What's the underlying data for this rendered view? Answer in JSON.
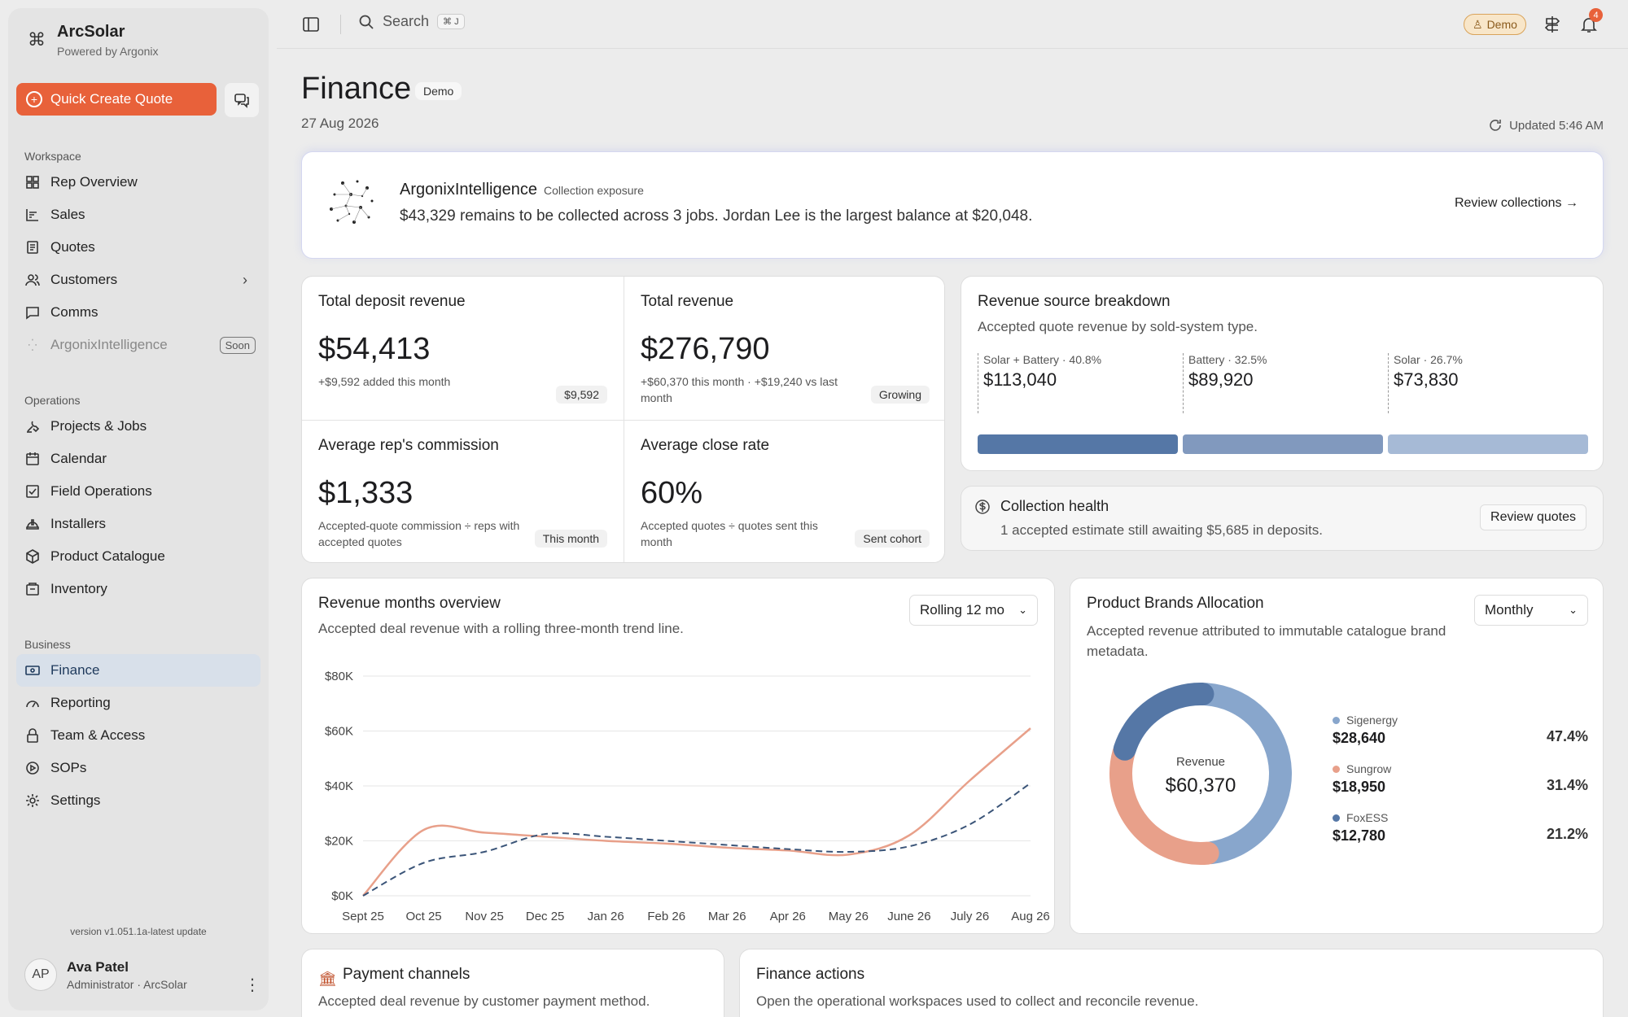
{
  "brand": {
    "name": "ArcSolar",
    "sub": "Powered by Argonix"
  },
  "sidebar": {
    "quick_create": "Quick Create Quote",
    "workspace_label": "Workspace",
    "operations_label": "Operations",
    "business_label": "Business",
    "workspace": [
      {
        "label": "Rep Overview",
        "icon": "grid-icon"
      },
      {
        "label": "Sales",
        "icon": "chart-icon"
      },
      {
        "label": "Quotes",
        "icon": "document-icon"
      },
      {
        "label": "Customers",
        "icon": "users-icon"
      },
      {
        "label": "Comms",
        "icon": "message-icon"
      },
      {
        "label": "ArgonixIntelligence",
        "icon": "sparkle-icon",
        "tag": "Soon"
      }
    ],
    "operations": [
      {
        "label": "Projects & Jobs",
        "icon": "tools-icon"
      },
      {
        "label": "Calendar",
        "icon": "calendar-icon"
      },
      {
        "label": "Field Operations",
        "icon": "checklist-icon"
      },
      {
        "label": "Installers",
        "icon": "hardhat-icon"
      },
      {
        "label": "Product Catalogue",
        "icon": "box-icon"
      },
      {
        "label": "Inventory",
        "icon": "inventory-icon"
      }
    ],
    "business": [
      {
        "label": "Finance",
        "icon": "money-icon",
        "active": true
      },
      {
        "label": "Reporting",
        "icon": "gauge-icon"
      },
      {
        "label": "Team & Access",
        "icon": "lock-icon"
      },
      {
        "label": "SOPs",
        "icon": "play-icon"
      },
      {
        "label": "Settings",
        "icon": "gear-icon"
      }
    ],
    "version": "version v1.051.1a-latest update",
    "user": {
      "initials": "AP",
      "name": "Ava Patel",
      "role": "Administrator · ArcSolar"
    }
  },
  "topbar": {
    "search": "Search",
    "shortcut": "⌘ J",
    "demo": "Demo",
    "notifications": "4"
  },
  "page": {
    "title": "Finance",
    "badge": "Demo",
    "date": "27 Aug 2026",
    "updated": "Updated 5:46 AM"
  },
  "ai": {
    "title": "ArgonixIntelligence",
    "tag": "Collection exposure",
    "message": "$43,329 remains to be collected across 3 jobs. Jordan Lee is the largest balance at $20,048.",
    "link": "Review collections →"
  },
  "metrics": [
    {
      "label": "Total deposit revenue",
      "value": "$54,413",
      "sub": "+$9,592 added this month",
      "pill": "$9,592"
    },
    {
      "label": "Total revenue",
      "value": "$276,790",
      "sub": "+$60,370 this month · +$19,240 vs last month",
      "pill": "Growing"
    },
    {
      "label": "Average rep's commission",
      "value": "$1,333",
      "sub": "Accepted-quote commission ÷ reps with accepted quotes",
      "pill": "This month"
    },
    {
      "label": "Average close rate",
      "value": "60%",
      "sub": "Accepted quotes ÷ quotes sent this month",
      "pill": "Sent cohort"
    }
  ],
  "revenue_source": {
    "title": "Revenue source breakdown",
    "sub": "Accepted quote revenue by sold-system type.",
    "segments": [
      {
        "label": "Solar + Battery · 40.8%",
        "value": "$113,040",
        "color": "#5577a6"
      },
      {
        "label": "Battery · 32.5%",
        "value": "$89,920",
        "color": "#8199be"
      },
      {
        "label": "Solar · 26.7%",
        "value": "$73,830",
        "color": "#a6bad6"
      }
    ]
  },
  "collection": {
    "title": "Collection health",
    "sub": "1 accepted estimate still awaiting $5,685 in deposits.",
    "button": "Review quotes"
  },
  "revenue_chart": {
    "title": "Revenue months overview",
    "sub": "Accepted deal revenue with a rolling three-month trend line.",
    "select": "Rolling 12 mo"
  },
  "chart_data": [
    {
      "type": "line",
      "x": [
        "Sept 25",
        "Oct 25",
        "Nov 25",
        "Dec 25",
        "Jan 26",
        "Feb 26",
        "Mar 26",
        "Apr 26",
        "May 26",
        "June 26",
        "July 26",
        "Aug 26"
      ],
      "yticks": [
        "$0K",
        "$20K",
        "$40K",
        "$60K",
        "$80K"
      ],
      "ylim": [
        0,
        80000
      ],
      "grid": true,
      "series": [
        {
          "values": [
            0,
            24000,
            23000,
            21500,
            20000,
            19000,
            17500,
            16500,
            15000,
            22000,
            42000,
            61000
          ],
          "color": "#e8a08a",
          "style": "solid"
        },
        {
          "values": [
            0,
            12000,
            16000,
            22500,
            21500,
            20000,
            18500,
            17000,
            16000,
            18000,
            26000,
            41000
          ],
          "color": "#3a5478",
          "style": "dashed"
        }
      ]
    },
    {
      "type": "pie",
      "categories": [
        "Sigenergy",
        "Sungrow",
        "FoxESS"
      ],
      "values": [
        47.4,
        31.4,
        21.2
      ],
      "colors": [
        "#88a6cc",
        "#e8a08a",
        "#5577a6"
      ],
      "center_label": "Revenue",
      "center_value": "$60,370"
    }
  ],
  "brands": {
    "title": "Product Brands Allocation",
    "sub": "Accepted revenue attributed to immutable catalogue brand metadata.",
    "select": "Monthly",
    "items": [
      {
        "name": "Sigenergy",
        "amount": "$28,640",
        "pct": "47.4%",
        "color": "#88a6cc"
      },
      {
        "name": "Sungrow",
        "amount": "$18,950",
        "pct": "31.4%",
        "color": "#e8a08a"
      },
      {
        "name": "FoxESS",
        "amount": "$12,780",
        "pct": "21.2%",
        "color": "#5577a6"
      }
    ]
  },
  "payment": {
    "title": "Payment channels",
    "sub": "Accepted deal revenue by customer payment method."
  },
  "actions": {
    "title": "Finance actions",
    "sub": "Open the operational workspaces used to collect and reconcile revenue."
  }
}
